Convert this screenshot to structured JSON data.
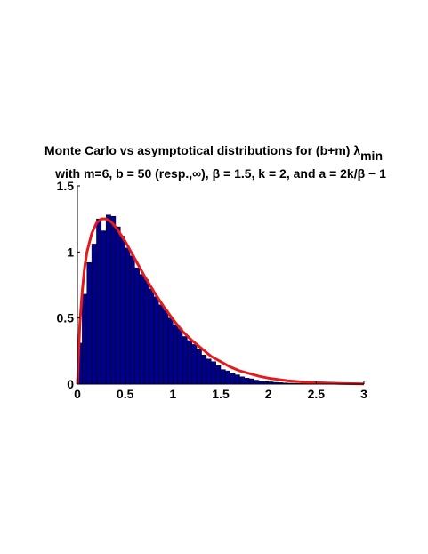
{
  "chart_data": {
    "type": "bar",
    "title_line1": "Monte Carlo vs asymptotical distributions for (b+m) λ",
    "title_line1_subscript": "min",
    "title_line2": "with m=6,  b = 50 (resp.,∞), β = 1.5, k = 2, and a = 2k/β − 1",
    "xlabel": "",
    "ylabel": "",
    "xlim": [
      0,
      3
    ],
    "ylim": [
      0,
      1.5
    ],
    "xticks": [
      0,
      0.5,
      1,
      1.5,
      2,
      2.5,
      3
    ],
    "xtick_labels": [
      "0",
      "0.5",
      "1",
      "1.5",
      "2",
      "2.5",
      "3"
    ],
    "yticks": [
      0,
      0.5,
      1,
      1.5
    ],
    "ytick_labels": [
      "0",
      "0.5",
      "1",
      "1.5"
    ],
    "grid": false,
    "bin_width": 0.05,
    "histogram": {
      "bin_starts": [
        0,
        0.05,
        0.1,
        0.15,
        0.2,
        0.25,
        0.3,
        0.35,
        0.4,
        0.45,
        0.5,
        0.55,
        0.6,
        0.65,
        0.7,
        0.75,
        0.8,
        0.85,
        0.9,
        0.95,
        1.0,
        1.05,
        1.1,
        1.15,
        1.2,
        1.25,
        1.3,
        1.35,
        1.4,
        1.45,
        1.5,
        1.55,
        1.6,
        1.65,
        1.7,
        1.75,
        1.8,
        1.85,
        1.9,
        1.95,
        2.0,
        2.05,
        2.1,
        2.15,
        2.2,
        2.25,
        2.3,
        2.35,
        2.4,
        2.45,
        2.5,
        2.55,
        2.6,
        2.65,
        2.7,
        2.75,
        2.8,
        2.85,
        2.9,
        2.95
      ],
      "values": [
        0.31,
        0.68,
        0.92,
        1.06,
        1.25,
        1.16,
        1.28,
        1.27,
        1.19,
        1.12,
        1.03,
        0.97,
        0.88,
        0.83,
        0.79,
        0.72,
        0.66,
        0.6,
        0.56,
        0.5,
        0.45,
        0.42,
        0.36,
        0.33,
        0.3,
        0.26,
        0.22,
        0.19,
        0.17,
        0.14,
        0.11,
        0.1,
        0.08,
        0.07,
        0.055,
        0.045,
        0.04,
        0.03,
        0.025,
        0.02,
        0.017,
        0.013,
        0.011,
        0.009,
        0.007,
        0.006,
        0.005,
        0.004,
        0.003,
        0.003,
        0.002,
        0.002,
        0.002,
        0.001,
        0.001,
        0.001,
        0.001,
        0.001,
        0.001,
        0.0
      ],
      "color": "#00008b",
      "edge_color": "#000000"
    },
    "curve": {
      "x": [
        0,
        0.025,
        0.05,
        0.075,
        0.1,
        0.15,
        0.2,
        0.25,
        0.3,
        0.35,
        0.4,
        0.5,
        0.6,
        0.7,
        0.8,
        0.9,
        1.0,
        1.1,
        1.2,
        1.3,
        1.4,
        1.5,
        1.6,
        1.7,
        1.8,
        1.9,
        2.0,
        2.2,
        2.4,
        2.6,
        2.8,
        3.0
      ],
      "y": [
        0,
        0.45,
        0.7,
        0.88,
        1.0,
        1.14,
        1.22,
        1.25,
        1.25,
        1.23,
        1.19,
        1.08,
        0.95,
        0.82,
        0.7,
        0.59,
        0.49,
        0.4,
        0.33,
        0.27,
        0.21,
        0.17,
        0.13,
        0.1,
        0.08,
        0.06,
        0.045,
        0.025,
        0.014,
        0.008,
        0.004,
        0.002
      ],
      "color": "#e41a1c"
    }
  }
}
